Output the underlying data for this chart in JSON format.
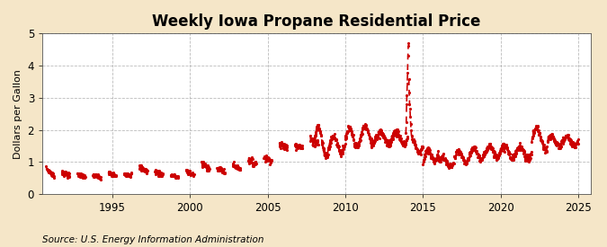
{
  "title": "Weekly Iowa Propane Residential Price",
  "ylabel": "Dollars per Gallon",
  "source": "Source: U.S. Energy Information Administration",
  "xlim": [
    1990.5,
    2025.8
  ],
  "ylim": [
    0,
    5
  ],
  "yticks": [
    0,
    1,
    2,
    3,
    4,
    5
  ],
  "xticks": [
    1995,
    2000,
    2005,
    2010,
    2015,
    2020,
    2025
  ],
  "line_color": "#cc0000",
  "figure_background": "#f5e6c8",
  "plot_background": "#ffffff",
  "title_fontsize": 12,
  "label_fontsize": 8,
  "tick_fontsize": 8.5,
  "source_fontsize": 7.5
}
